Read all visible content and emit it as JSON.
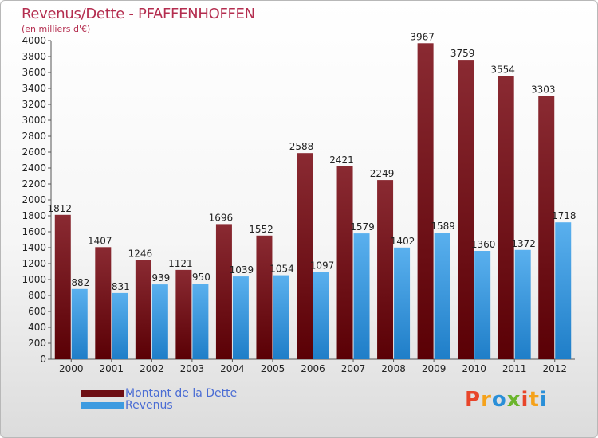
{
  "header": {
    "title": "Revenus/Dette - PFAFFENHOFFEN",
    "subtitle": "(en milliers d'€)"
  },
  "legend": {
    "items": [
      {
        "label": "Montant de la Dette",
        "color": "#6e0f14"
      },
      {
        "label": "Revenus",
        "color": "#3d9be0"
      }
    ]
  },
  "logo": {
    "text": "Proxiti",
    "colors": [
      "#e8452a",
      "#f5a21b",
      "#2a8fd8",
      "#6bb52c",
      "#e8452a",
      "#f5a21b",
      "#2a8fd8"
    ]
  },
  "chart_data": {
    "type": "bar",
    "title": "Revenus/Dette - PFAFFENHOFFEN",
    "subtitle": "(en milliers d'€)",
    "categories": [
      "2000",
      "2001",
      "2002",
      "2003",
      "2004",
      "2005",
      "2006",
      "2007",
      "2008",
      "2009",
      "2010",
      "2011",
      "2012"
    ],
    "series": [
      {
        "name": "Montant de la Dette",
        "color": "#6e0f14",
        "values": [
          1812,
          1407,
          1246,
          1121,
          1696,
          1552,
          2588,
          2421,
          2249,
          3967,
          3759,
          3554,
          3303
        ]
      },
      {
        "name": "Revenus",
        "color": "#3d9be0",
        "values": [
          882,
          831,
          939,
          950,
          1039,
          1054,
          1097,
          1579,
          1402,
          1589,
          1360,
          1372,
          1718
        ]
      }
    ],
    "ylim": [
      0,
      4000
    ],
    "yticks": [
      0,
      200,
      400,
      600,
      800,
      1000,
      1200,
      1400,
      1600,
      1800,
      2000,
      2200,
      2400,
      2600,
      2800,
      3000,
      3200,
      3400,
      3600,
      3800,
      4000
    ],
    "grid": false,
    "legend_position": "bottom-left"
  }
}
